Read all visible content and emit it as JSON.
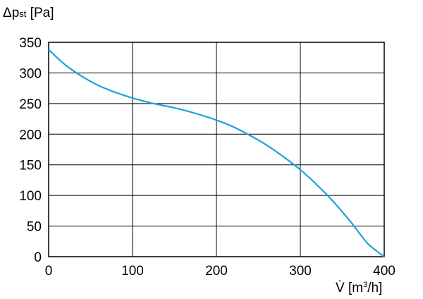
{
  "chart_data": {
    "type": "line",
    "title": "",
    "ylabel_main": "Δp",
    "ylabel_sub": "st",
    "ylabel_unit": " [Pa]",
    "xlabel_main": "V̇",
    "xlabel_unit_pre": " [m",
    "xlabel_unit_sup": "3",
    "xlabel_unit_post": "/h]",
    "xlim": [
      0,
      400
    ],
    "ylim": [
      0,
      350
    ],
    "grid": true,
    "line_color": "#1aa3dd",
    "x_ticks": [
      "0",
      "100",
      "200",
      "300",
      "400"
    ],
    "y_ticks": [
      "0",
      "50",
      "100",
      "150",
      "200",
      "250",
      "300",
      "350"
    ],
    "series": [
      {
        "x": [
          0,
          10,
          20,
          30,
          45,
          60,
          80,
          100,
          125,
          150,
          175,
          200,
          220,
          240,
          260,
          280,
          300,
          320,
          340,
          360,
          380,
          400
        ],
        "y": [
          338,
          325,
          313,
          303,
          290,
          279,
          268,
          259,
          250,
          243,
          234,
          223,
          212,
          198,
          182,
          163,
          142,
          117,
          89,
          57,
          22,
          0
        ]
      }
    ]
  }
}
